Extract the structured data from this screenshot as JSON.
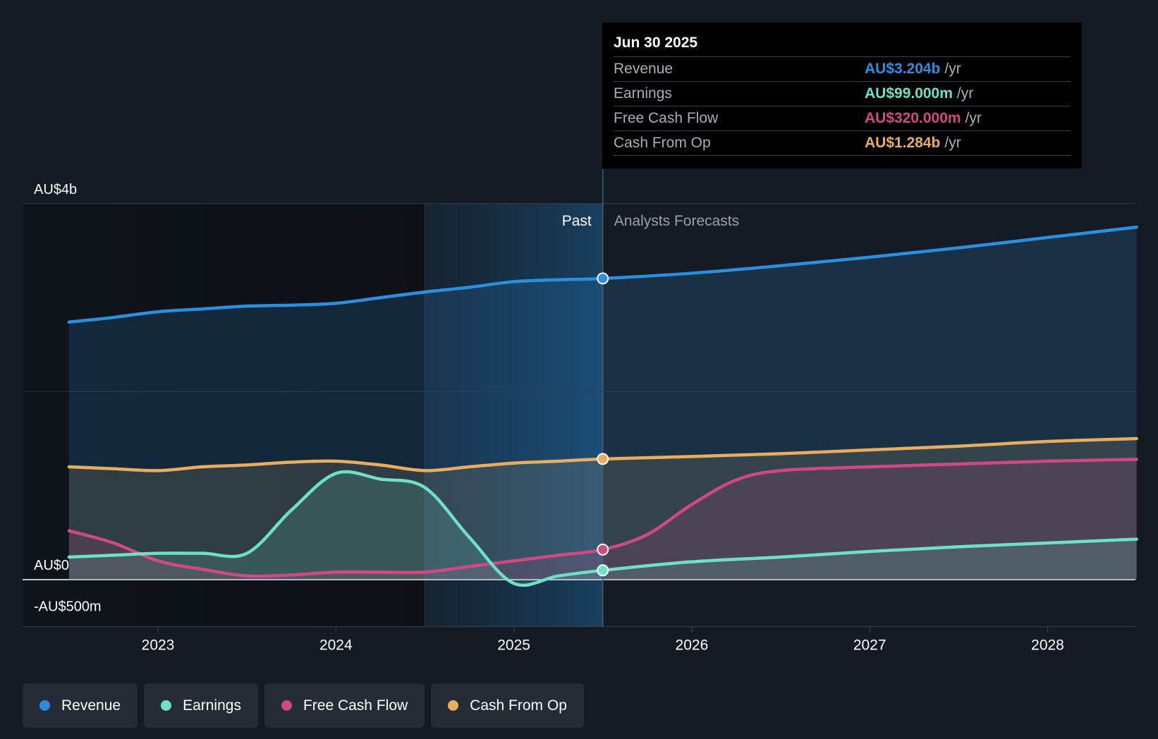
{
  "chart_data": {
    "type": "area",
    "currency": "AU$",
    "x_domain": [
      2022.5,
      2028.5
    ],
    "divider_x": 2025.5,
    "highlight_start_x": 2024.5,
    "y_domain": [
      -0.5,
      4.0
    ],
    "y_ticks": [
      {
        "value": 4.0,
        "label": "AU$4b"
      },
      {
        "value": 0.0,
        "label": "AU$0"
      },
      {
        "value": -0.5,
        "label": "-AU$500m"
      }
    ],
    "x_ticks": [
      {
        "value": 2023,
        "label": "2023"
      },
      {
        "value": 2024,
        "label": "2024"
      },
      {
        "value": 2025,
        "label": "2025"
      },
      {
        "value": 2026,
        "label": "2026"
      },
      {
        "value": 2027,
        "label": "2027"
      },
      {
        "value": 2028,
        "label": "2028"
      }
    ],
    "sections": {
      "past": "Past",
      "forecast": "Analysts Forecasts"
    },
    "series": [
      {
        "key": "cfo",
        "name": "Cash From Op",
        "color": "#e8ad5e",
        "points": [
          [
            2022.5,
            1.2
          ],
          [
            2022.75,
            1.18
          ],
          [
            2023.0,
            1.16
          ],
          [
            2023.25,
            1.2
          ],
          [
            2023.5,
            1.22
          ],
          [
            2023.75,
            1.25
          ],
          [
            2024.0,
            1.26
          ],
          [
            2024.25,
            1.22
          ],
          [
            2024.5,
            1.16
          ],
          [
            2024.75,
            1.2
          ],
          [
            2025.0,
            1.24
          ],
          [
            2025.25,
            1.26
          ],
          [
            2025.5,
            1.284
          ],
          [
            2026.0,
            1.31
          ],
          [
            2026.5,
            1.34
          ],
          [
            2027.0,
            1.38
          ],
          [
            2027.5,
            1.42
          ],
          [
            2028.0,
            1.47
          ],
          [
            2028.5,
            1.5
          ]
        ]
      },
      {
        "key": "rev",
        "name": "Revenue",
        "color": "#2a8fdf",
        "points": [
          [
            2022.5,
            2.74
          ],
          [
            2022.75,
            2.79
          ],
          [
            2023.0,
            2.85
          ],
          [
            2023.25,
            2.88
          ],
          [
            2023.5,
            2.91
          ],
          [
            2023.75,
            2.92
          ],
          [
            2024.0,
            2.94
          ],
          [
            2024.25,
            3.0
          ],
          [
            2024.5,
            3.06
          ],
          [
            2024.75,
            3.11
          ],
          [
            2025.0,
            3.17
          ],
          [
            2025.25,
            3.19
          ],
          [
            2025.5,
            3.204
          ],
          [
            2026.0,
            3.26
          ],
          [
            2026.5,
            3.34
          ],
          [
            2027.0,
            3.43
          ],
          [
            2027.5,
            3.53
          ],
          [
            2028.0,
            3.64
          ],
          [
            2028.5,
            3.75
          ]
        ]
      },
      {
        "key": "fcf",
        "name": "Free Cash Flow",
        "color": "#cf4a85",
        "points": [
          [
            2022.5,
            0.52
          ],
          [
            2022.75,
            0.39
          ],
          [
            2023.0,
            0.2
          ],
          [
            2023.25,
            0.11
          ],
          [
            2023.5,
            0.04
          ],
          [
            2023.75,
            0.05
          ],
          [
            2024.0,
            0.08
          ],
          [
            2024.25,
            0.08
          ],
          [
            2024.5,
            0.08
          ],
          [
            2024.75,
            0.14
          ],
          [
            2025.0,
            0.2
          ],
          [
            2025.25,
            0.26
          ],
          [
            2025.5,
            0.32
          ],
          [
            2025.75,
            0.48
          ],
          [
            2026.0,
            0.8
          ],
          [
            2026.25,
            1.06
          ],
          [
            2026.5,
            1.16
          ],
          [
            2027.0,
            1.2
          ],
          [
            2027.5,
            1.23
          ],
          [
            2028.0,
            1.26
          ],
          [
            2028.5,
            1.28
          ]
        ]
      },
      {
        "key": "earn",
        "name": "Earnings",
        "color": "#6ee0c8",
        "points": [
          [
            2022.5,
            0.24
          ],
          [
            2022.75,
            0.26
          ],
          [
            2023.0,
            0.28
          ],
          [
            2023.25,
            0.28
          ],
          [
            2023.5,
            0.28
          ],
          [
            2023.75,
            0.74
          ],
          [
            2024.0,
            1.13
          ],
          [
            2024.25,
            1.07
          ],
          [
            2024.5,
            0.98
          ],
          [
            2024.75,
            0.45
          ],
          [
            2025.0,
            -0.04
          ],
          [
            2025.25,
            0.04
          ],
          [
            2025.5,
            0.099
          ],
          [
            2026.0,
            0.19
          ],
          [
            2026.5,
            0.24
          ],
          [
            2027.0,
            0.3
          ],
          [
            2027.5,
            0.35
          ],
          [
            2028.0,
            0.39
          ],
          [
            2028.5,
            0.43
          ]
        ]
      }
    ],
    "markers_at": 2025.5
  },
  "tooltip": {
    "date": "Jun 30 2025",
    "unit": "/yr",
    "rows": [
      {
        "label": "Revenue",
        "value": "AU$3.204b",
        "color": "#2a8fdf"
      },
      {
        "label": "Earnings",
        "value": "AU$99.000m",
        "color": "#6ee0c8"
      },
      {
        "label": "Free Cash Flow",
        "value": "AU$320.000m",
        "color": "#cf4a85"
      },
      {
        "label": "Cash From Op",
        "value": "AU$1.284b",
        "color": "#e8ad5e"
      }
    ]
  },
  "legend": [
    {
      "label": "Revenue",
      "color": "#2a8fdf"
    },
    {
      "label": "Earnings",
      "color": "#6ee0c8"
    },
    {
      "label": "Free Cash Flow",
      "color": "#cf4a85"
    },
    {
      "label": "Cash From Op",
      "color": "#e8ad5e"
    }
  ]
}
